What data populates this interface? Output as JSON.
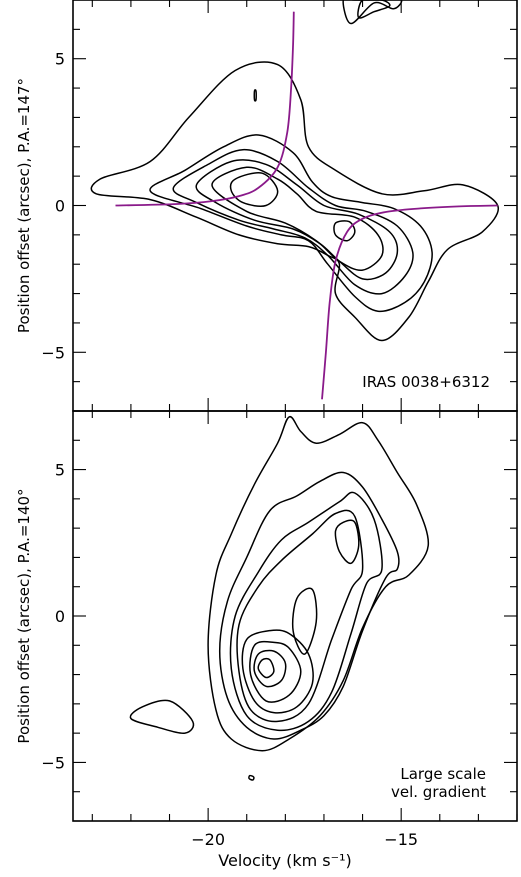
{
  "chart_data": [
    {
      "type": "contour",
      "panel": "top",
      "ylabel": "Position offset (arcsec), P.A.=147°",
      "xlim": [
        -23.5,
        -12.0
      ],
      "ylim": [
        -7.0,
        7.0
      ],
      "x_ticks": [
        -20,
        -15
      ],
      "y_ticks": [
        -5,
        0,
        5
      ],
      "y_tick_labels": [
        "−5",
        "0",
        "5"
      ],
      "annotations": [
        "IRAS 0038+6312"
      ],
      "curve_color": "#8a1a8a",
      "fit_curves": [
        {
          "x": [
            -22.4,
            -20.8,
            -19.9,
            -19.2,
            -18.7,
            -18.2,
            -17.95,
            -17.85,
            -17.8,
            -17.78
          ],
          "y": [
            0.0,
            0.05,
            0.15,
            0.32,
            0.6,
            1.3,
            2.5,
            4.0,
            5.5,
            6.6
          ]
        },
        {
          "x": [
            -12.5,
            -13.5,
            -14.5,
            -15.4,
            -16.0,
            -16.4,
            -16.7,
            -16.85,
            -16.95,
            -17.05
          ],
          "y": [
            0.0,
            -0.03,
            -0.1,
            -0.22,
            -0.45,
            -0.9,
            -1.9,
            -3.3,
            -5.0,
            -6.6
          ]
        }
      ],
      "contours": [
        {
          "x": [
            -22.8,
            -21.5,
            -20.5,
            -19.3,
            -18.2,
            -17.6,
            -17.4,
            -16.7,
            -15.5,
            -14.4,
            -13.4,
            -12.5,
            -12.9,
            -13.8,
            -14.3,
            -14.8,
            -15.5,
            -16.2,
            -16.7,
            -16.6,
            -16.9,
            -17.4,
            -18.2,
            -19.2,
            -20.3,
            -21.5,
            -22.9
          ],
          "y": [
            0.9,
            1.5,
            3.0,
            4.6,
            4.8,
            3.6,
            2.0,
            1.2,
            0.4,
            0.5,
            0.7,
            0.0,
            -0.9,
            -1.5,
            -2.6,
            -3.8,
            -4.6,
            -3.8,
            -3.0,
            -2.0,
            -1.7,
            -1.4,
            -1.3,
            -1.0,
            -0.4,
            0.2,
            0.4
          ]
        },
        {
          "x": [
            -21.5,
            -20.6,
            -19.6,
            -18.7,
            -17.8,
            -17.3,
            -16.8,
            -16.0,
            -15.2,
            -14.5,
            -14.2,
            -14.4,
            -14.9,
            -15.6,
            -16.2,
            -16.9,
            -17.4,
            -18.1,
            -19.0,
            -20.2
          ],
          "y": [
            0.5,
            1.2,
            2.0,
            2.4,
            1.8,
            0.8,
            0.3,
            0.1,
            -0.1,
            -0.7,
            -1.6,
            -2.6,
            -3.3,
            -3.6,
            -3.1,
            -2.0,
            -1.2,
            -1.0,
            -0.7,
            -0.1
          ]
        },
        {
          "x": [
            -20.9,
            -20.0,
            -19.1,
            -18.2,
            -17.4,
            -16.7,
            -15.9,
            -15.1,
            -14.7,
            -14.9,
            -15.5,
            -16.2,
            -16.9,
            -17.5,
            -18.3,
            -19.2,
            -20.3
          ],
          "y": [
            0.6,
            1.4,
            1.9,
            1.5,
            0.6,
            0.0,
            -0.2,
            -0.7,
            -1.6,
            -2.4,
            -3.0,
            -2.7,
            -1.7,
            -1.1,
            -0.8,
            -0.5,
            0.1
          ]
        },
        {
          "x": [
            -20.3,
            -19.4,
            -18.5,
            -17.7,
            -17.0,
            -16.1,
            -15.3,
            -15.1,
            -15.4,
            -16.0,
            -16.6,
            -17.1,
            -17.8,
            -18.8,
            -19.8
          ],
          "y": [
            0.7,
            1.5,
            1.4,
            0.7,
            0.0,
            -0.3,
            -0.9,
            -1.6,
            -2.3,
            -2.5,
            -1.9,
            -1.3,
            -0.8,
            -0.5,
            0.1
          ]
        },
        {
          "x": [
            -19.9,
            -19.0,
            -18.2,
            -17.7,
            -17.2,
            -16.2,
            -15.6,
            -15.5,
            -16.0,
            -16.6,
            -17.2,
            -18.0,
            -19.0
          ],
          "y": [
            0.7,
            1.3,
            0.9,
            0.4,
            -0.2,
            -0.4,
            -1.0,
            -1.7,
            -2.2,
            -1.9,
            -1.2,
            -0.6,
            -0.2
          ]
        },
        {
          "x": [
            -19.3,
            -18.6,
            -18.2,
            -18.5,
            -19.1,
            -19.4
          ],
          "y": [
            0.9,
            1.1,
            0.5,
            0.0,
            0.1,
            0.5
          ]
        },
        {
          "x": [
            -16.7,
            -16.35,
            -16.2,
            -16.4,
            -16.7
          ],
          "y": [
            -0.6,
            -0.55,
            -0.9,
            -1.2,
            -1.0
          ]
        },
        {
          "x": [
            -16.3,
            -15.7,
            -15.2,
            -15.0,
            -15.5,
            -16.2,
            -16.5
          ],
          "y": [
            6.2,
            6.9,
            6.7,
            7.0,
            7.0,
            7.0,
            7.0
          ]
        },
        {
          "x": [
            -16.1,
            -15.7,
            -15.3,
            -15.5,
            -16.0
          ],
          "y": [
            6.4,
            6.6,
            6.8,
            7.0,
            7.0
          ]
        },
        {
          "x": [
            -18.8,
            -18.76,
            -18.76,
            -18.8
          ],
          "y": [
            3.9,
            3.9,
            3.6,
            3.6
          ]
        }
      ]
    },
    {
      "type": "contour",
      "panel": "bottom",
      "ylabel": "Position offset (arcsec), P.A.=140°",
      "xlabel": "Velocity (km s⁻¹)",
      "xlim": [
        -23.5,
        -12.0
      ],
      "ylim": [
        -7.0,
        7.0
      ],
      "x_ticks": [
        -20,
        -15
      ],
      "x_tick_labels": [
        "−20",
        "−15"
      ],
      "y_ticks": [
        -5,
        0,
        5
      ],
      "y_tick_labels": [
        "−5",
        "0",
        "5"
      ],
      "annotations": [
        "Large scale",
        "vel. gradient"
      ],
      "contours": [
        {
          "x": [
            -19.8,
            -19.4,
            -18.8,
            -18.2,
            -17.9,
            -17.6,
            -17.2,
            -16.6,
            -16.0,
            -15.6,
            -15.1,
            -14.6,
            -14.3,
            -14.8,
            -15.4,
            -16.0,
            -16.5,
            -17.1,
            -17.9,
            -18.6,
            -19.4,
            -19.8,
            -20.0
          ],
          "y": [
            1.4,
            2.8,
            4.5,
            5.9,
            6.8,
            6.3,
            5.9,
            6.2,
            6.6,
            6.0,
            4.9,
            3.8,
            2.4,
            1.4,
            1.0,
            -0.4,
            -2.2,
            -3.4,
            -4.2,
            -4.6,
            -4.2,
            -3.2,
            -1.0
          ]
        },
        {
          "x": [
            -19.5,
            -19.0,
            -18.4,
            -17.7,
            -17.1,
            -16.5,
            -16.0,
            -15.5,
            -15.1,
            -15.1,
            -15.4,
            -16.0,
            -16.5,
            -17.0,
            -17.6,
            -18.3,
            -19.0,
            -19.5,
            -19.7
          ],
          "y": [
            0.5,
            2.0,
            3.6,
            4.1,
            4.6,
            4.9,
            4.4,
            3.3,
            2.2,
            1.6,
            1.3,
            -0.5,
            -2.4,
            -3.4,
            -3.9,
            -4.2,
            -3.8,
            -2.8,
            -1.2
          ]
        },
        {
          "x": [
            -19.3,
            -18.7,
            -18.1,
            -17.4,
            -16.6,
            -16.2,
            -15.7,
            -15.5,
            -15.9,
            -16.3,
            -16.8,
            -17.4,
            -18.2,
            -19.0,
            -19.4
          ],
          "y": [
            0.0,
            1.5,
            2.6,
            3.2,
            3.9,
            4.2,
            3.3,
            1.6,
            1.1,
            -0.6,
            -2.6,
            -3.6,
            -3.9,
            -3.4,
            -1.8
          ]
        },
        {
          "x": [
            -19.2,
            -18.7,
            -18.1,
            -17.3,
            -16.7,
            -16.2,
            -16.0,
            -16.3,
            -16.8,
            -17.4,
            -18.2,
            -18.9,
            -19.2
          ],
          "y": [
            -0.3,
            1.0,
            1.9,
            2.8,
            3.5,
            3.4,
            1.6,
            0.9,
            -0.8,
            -3.0,
            -3.6,
            -3.2,
            -1.9
          ]
        },
        {
          "x": [
            -16.5,
            -16.2,
            -16.1,
            -16.3,
            -16.6,
            -16.7
          ],
          "y": [
            3.2,
            3.2,
            2.4,
            1.8,
            2.2,
            2.9
          ]
        },
        {
          "x": [
            -19.0,
            -18.4,
            -17.9,
            -17.4,
            -17.3,
            -17.7,
            -18.3,
            -18.8,
            -19.1
          ],
          "y": [
            -0.8,
            -0.5,
            -0.6,
            -1.3,
            -2.3,
            -3.1,
            -3.3,
            -2.9,
            -1.8
          ]
        },
        {
          "x": [
            -18.8,
            -18.3,
            -17.9,
            -17.6,
            -17.9,
            -18.5,
            -18.9
          ],
          "y": [
            -1.0,
            -0.9,
            -1.1,
            -1.9,
            -2.7,
            -2.9,
            -2.0
          ]
        },
        {
          "x": [
            -18.7,
            -18.3,
            -18.0,
            -18.1,
            -18.5,
            -18.8
          ],
          "y": [
            -1.3,
            -1.2,
            -1.6,
            -2.2,
            -2.4,
            -1.9
          ]
        },
        {
          "x": [
            -18.6,
            -18.4,
            -18.3,
            -18.5,
            -18.7
          ],
          "y": [
            -1.5,
            -1.5,
            -1.9,
            -2.1,
            -1.8
          ]
        },
        {
          "x": [
            -21.7,
            -21.0,
            -20.4,
            -20.6,
            -21.3,
            -22.0
          ],
          "y": [
            -3.1,
            -2.9,
            -3.6,
            -4.0,
            -3.8,
            -3.5
          ]
        },
        {
          "x": [
            -17.7,
            -17.3,
            -17.2,
            -17.5,
            -17.8
          ],
          "y": [
            0.6,
            0.9,
            -0.2,
            -1.3,
            -0.5
          ]
        },
        {
          "x": [
            -18.92,
            -18.82,
            -18.84,
            -18.94
          ],
          "y": [
            -5.45,
            -5.5,
            -5.6,
            -5.55
          ]
        }
      ]
    }
  ]
}
